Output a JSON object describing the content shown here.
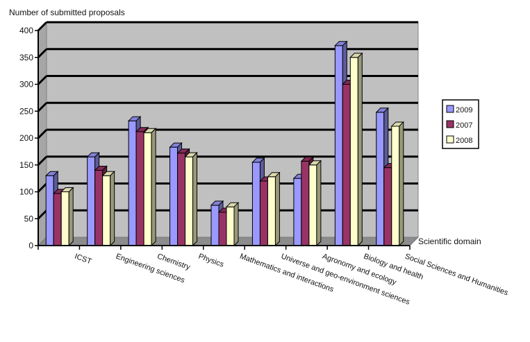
{
  "chart_data": {
    "type": "bar",
    "title": "",
    "ylabel": "Number of submitted proposals",
    "xlabel": "Scientific domain",
    "ylim": [
      0,
      400
    ],
    "yticks": [
      0,
      50,
      100,
      150,
      200,
      250,
      300,
      350,
      400
    ],
    "grid": true,
    "legend_position": "right",
    "categories": [
      "ICST",
      "Engineering sciences",
      "Chemistry",
      "Physics",
      "Mathematics and interactions",
      "Universe and geo-environment sciences",
      "Agronomy and ecology",
      "Biology and health",
      "Social Sciences and Humanities"
    ],
    "series": [
      {
        "name": "2009",
        "color": "#9999ff",
        "values": [
          130,
          165,
          232,
          183,
          75,
          155,
          125,
          372,
          248
        ]
      },
      {
        "name": "2007",
        "color": "#993366",
        "values": [
          97,
          140,
          212,
          172,
          62,
          120,
          157,
          300,
          145
        ]
      },
      {
        "name": "2008",
        "color": "#ffffcc",
        "values": [
          100,
          130,
          210,
          165,
          72,
          128,
          150,
          350,
          222
        ]
      }
    ]
  }
}
